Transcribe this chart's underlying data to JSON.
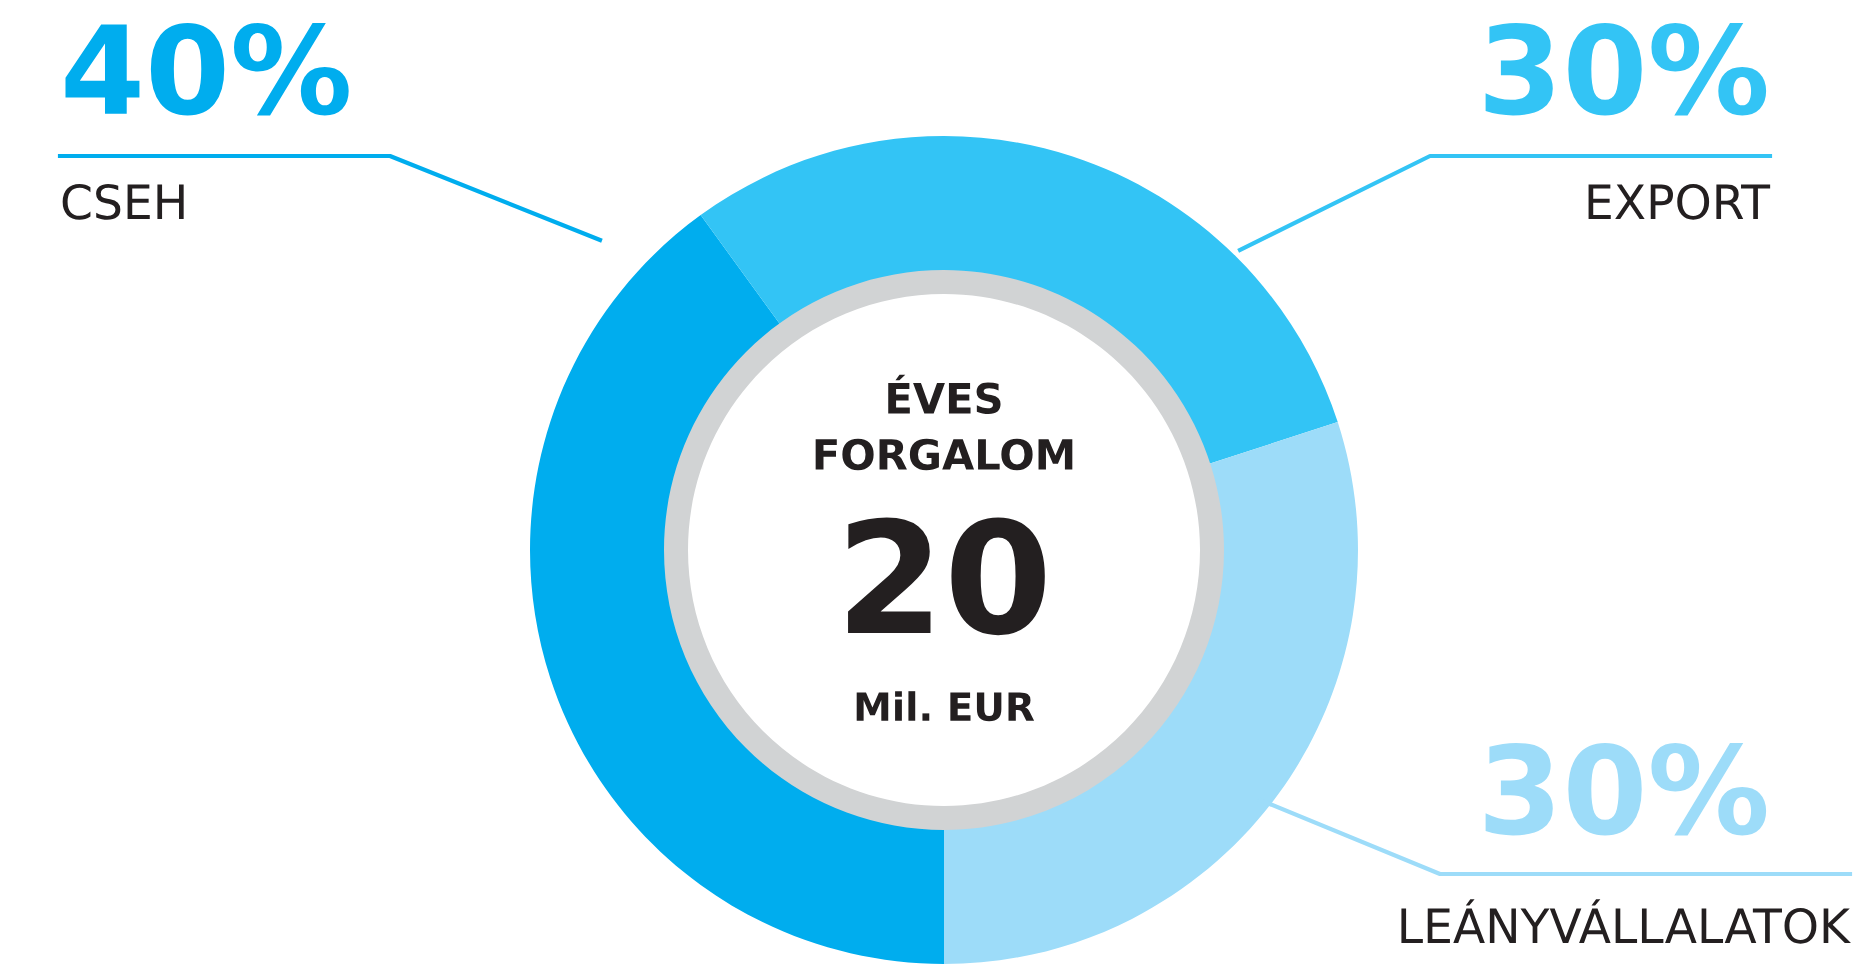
{
  "chart_data": {
    "type": "donut",
    "categories": [
      "CSEH",
      "EXPORT",
      "LEÁNYVÁLLALATOK"
    ],
    "values": [
      40,
      30,
      30
    ],
    "value_labels": [
      "40%",
      "30%",
      "30%"
    ],
    "colors": [
      "#00adee",
      "#33c4f5",
      "#9ddcf9"
    ],
    "annotations": [
      "ÉVES\nFORGALOM",
      "20",
      "Mil. EUR"
    ],
    "legend": false
  }
}
